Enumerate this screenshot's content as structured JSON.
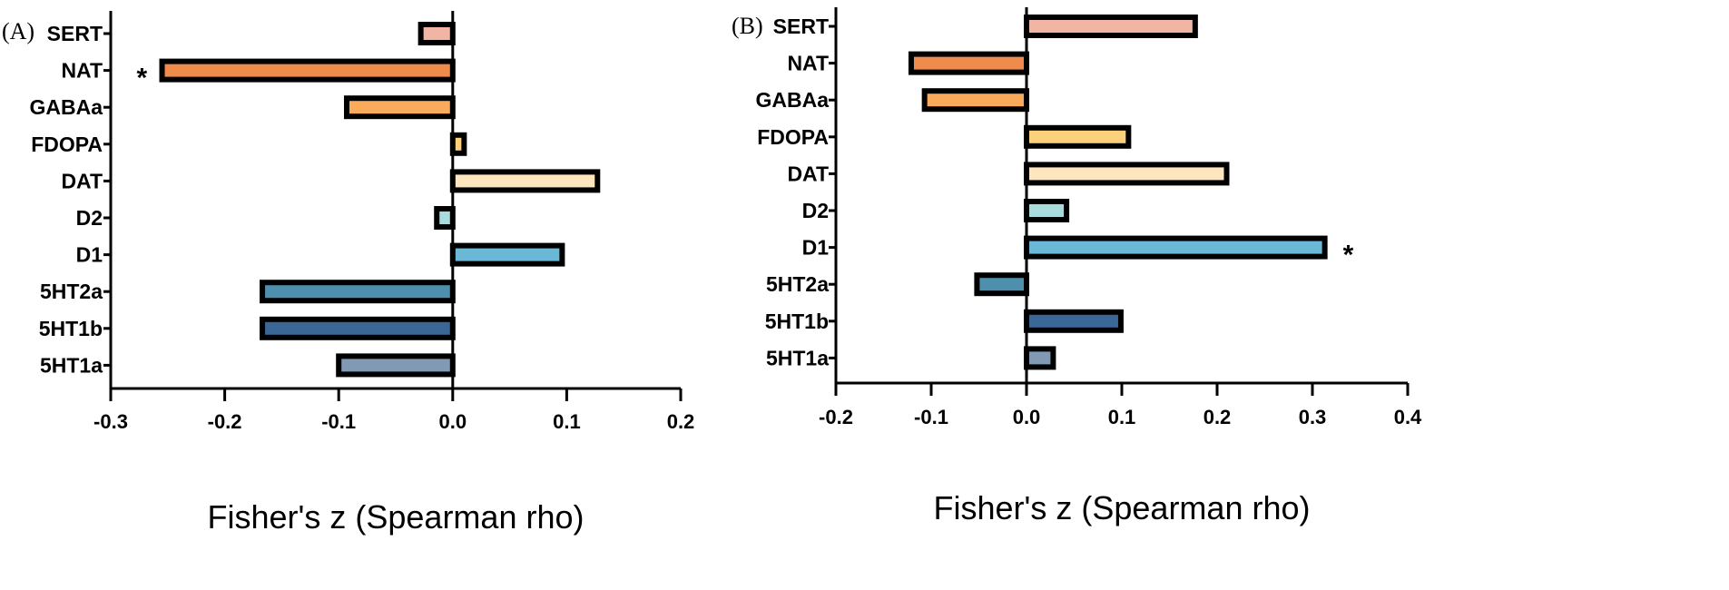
{
  "chart_data": [
    {
      "type": "bar",
      "orientation": "horizontal",
      "panel_label": "(A)",
      "categories": [
        "SERT",
        "NAT",
        "GABAa",
        "FDOPA",
        "DAT",
        "D2",
        "D1",
        "5HT2a",
        "5HT1b",
        "5HT1a"
      ],
      "values": [
        -0.028,
        -0.255,
        -0.093,
        0.01,
        0.127,
        -0.014,
        0.096,
        -0.167,
        -0.167,
        -0.1
      ],
      "bar_colors": [
        "#f2b5a4",
        "#ef8c4c",
        "#f9aa5a",
        "#fdd07c",
        "#fde6bd",
        "#a9dadc",
        "#6bb7d6",
        "#4f8fae",
        "#3a6795",
        "#8299b4"
      ],
      "annotations": [
        {
          "category": "NAT",
          "text": "*"
        }
      ],
      "xlabel": "Fisher's z (Spearman rho)",
      "xlim": [
        -0.3,
        0.2
      ],
      "xticks": [
        -0.3,
        -0.2,
        -0.1,
        0.0,
        0.1,
        0.2
      ],
      "xtick_labels": [
        "-0.3",
        "-0.2",
        "-0.1",
        "0.0",
        "0.1",
        "0.2"
      ],
      "grid": false
    },
    {
      "type": "bar",
      "orientation": "horizontal",
      "panel_label": "(B)",
      "categories": [
        "SERT",
        "NAT",
        "GABAa",
        "FDOPA",
        "DAT",
        "D2",
        "D1",
        "5HT2a",
        "5HT1b",
        "5HT1a"
      ],
      "values": [
        0.177,
        -0.121,
        -0.107,
        0.107,
        0.21,
        0.042,
        0.313,
        -0.052,
        0.099,
        0.028
      ],
      "bar_colors": [
        "#f2b5a4",
        "#ef8c4c",
        "#f9aa5a",
        "#fdd07c",
        "#fde6bd",
        "#a9dadc",
        "#6bb7d6",
        "#4f8fae",
        "#3a6795",
        "#8299b4"
      ],
      "annotations": [
        {
          "category": "D1",
          "text": "*"
        }
      ],
      "xlabel": "Fisher's z (Spearman rho)",
      "xlim": [
        -0.2,
        0.4
      ],
      "xticks": [
        -0.2,
        -0.1,
        0.0,
        0.1,
        0.2,
        0.3,
        0.4
      ],
      "xtick_labels": [
        "-0.2",
        "-0.1",
        "0.0",
        "0.1",
        "0.2",
        "0.3",
        "0.4"
      ],
      "grid": false
    }
  ]
}
